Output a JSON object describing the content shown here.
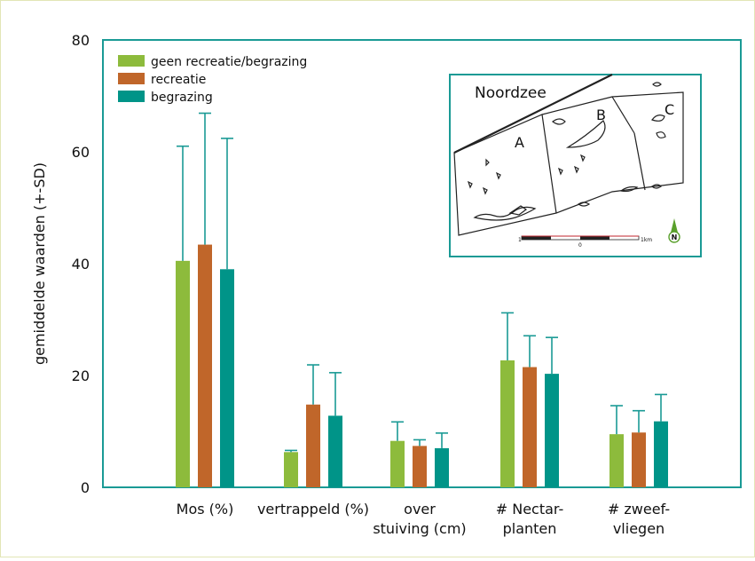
{
  "colors": {
    "page_border": "#e2e6b6",
    "frame": "#1a9a95",
    "map_line": "#222222",
    "north_arrow": "#5aa02c"
  },
  "chart_data": {
    "type": "bar",
    "title": "",
    "xlabel": "",
    "ylabel": "gemiddelde waarden (+-SD)",
    "ylim": [
      0,
      80
    ],
    "yticks": [
      0,
      20,
      40,
      60,
      80
    ],
    "grid": false,
    "legend_position": "top-left",
    "categories": [
      [
        "Mos (%)"
      ],
      [
        "vertrappeld (%)"
      ],
      [
        "over",
        "stuiving (cm)"
      ],
      [
        "# Nectar-",
        "planten"
      ],
      [
        "# zweef-",
        "vliegen"
      ]
    ],
    "series": [
      {
        "name": "geen recreatie/begrazing",
        "color": "#8dbb3c",
        "values": [
          40.5,
          6.3,
          8.3,
          22.7,
          9.5
        ],
        "sd": [
          20.5,
          0.3,
          3.4,
          8.5,
          5.1
        ]
      },
      {
        "name": "recreatie",
        "color": "#c0662a",
        "values": [
          43.4,
          14.8,
          7.4,
          21.5,
          9.8
        ],
        "sd": [
          23.5,
          7.1,
          1.1,
          5.6,
          3.9
        ]
      },
      {
        "name": "begrazing",
        "color": "#009488",
        "values": [
          39.0,
          12.8,
          7.0,
          20.3,
          11.8
        ],
        "sd": [
          23.4,
          7.7,
          2.7,
          6.5,
          4.8
        ]
      }
    ]
  },
  "inset_map": {
    "sea_label": "Noordzee",
    "zone_labels": [
      "A",
      "B",
      "C"
    ],
    "scale_start": "1",
    "scale_mid": "0",
    "scale_end": "1km",
    "north_label": "N"
  }
}
